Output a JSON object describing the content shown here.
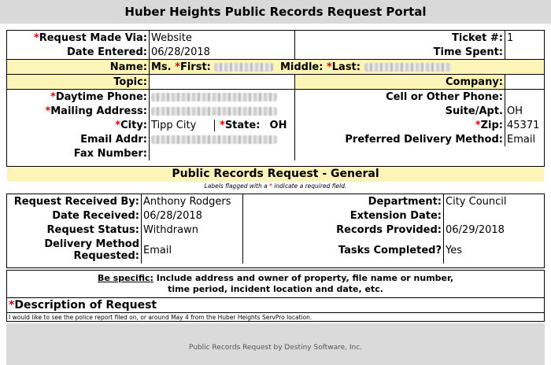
{
  "header": {
    "title": "Huber Heights Public Records Request Portal"
  },
  "requester": {
    "request_made_via_label": "Request Made Via:",
    "request_made_via": "Website",
    "ticket_label": "Ticket #:",
    "ticket": "1",
    "date_entered_label": "Date Entered:",
    "date_entered": "06/28/2018",
    "time_spent_label": "Time Spent:",
    "time_spent": "",
    "name_label": "Name:",
    "salutation": "Ms.",
    "first_label": "First:",
    "middle_label": "Middle:",
    "last_label": "Last:",
    "topic_label": "Topic:",
    "company_label": "Company:",
    "daytime_phone_label": "Daytime Phone:",
    "cell_phone_label": "Cell or Other Phone:",
    "mailing_address_label": "Mailing Address:",
    "suite_label": "Suite/Apt.",
    "suite_value": "OH",
    "city_label": "City:",
    "city": "Tipp City",
    "state_label": "State:",
    "state": "OH",
    "zip_label": "Zip:",
    "zip": "45371",
    "email_label": "Email Addr:",
    "preferred_delivery_label": "Preferred Delivery Method:",
    "preferred_delivery": "Email",
    "fax_label": "Fax Number:"
  },
  "general": {
    "heading": "Public Records Request - General",
    "note_prefix": "Labels flagged with a ",
    "note_star": "*",
    "note_suffix": " indicate a required field.",
    "received_by_label": "Request Received By:",
    "received_by": "Anthony Rodgers",
    "department_label": "Department:",
    "department": "City Council",
    "date_received_label": "Date Received:",
    "date_received": "06/28/2018",
    "extension_label": "Extension Date:",
    "extension": "",
    "status_label": "Request Status:",
    "status": "Withdrawn",
    "records_provided_label": "Records Provided:",
    "records_provided": "06/29/2018",
    "delivery_method_label_1": "Delivery Method",
    "delivery_method_label_2": "Requested:",
    "delivery_method": "Email",
    "tasks_completed_label": "Tasks Completed?",
    "tasks_completed": "Yes"
  },
  "instructions": {
    "be_specific": "Be specific:",
    "line1": " Include address and owner of property, file name or number,",
    "line2": "time period, incident location and date, etc."
  },
  "description": {
    "label": "Description of Request",
    "text": "I would like to see the police report filed on, or around May 4 from the Huber Heights ServPro location."
  },
  "footer": {
    "credit": "Public Records Request by Destiny Software, Inc."
  }
}
